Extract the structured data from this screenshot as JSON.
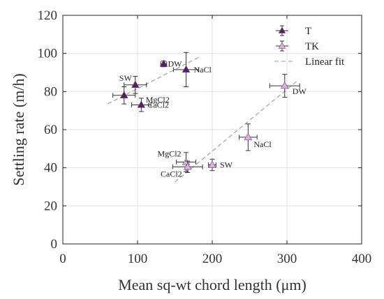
{
  "chart_data": {
    "type": "scatter",
    "title": "",
    "xlabel": "Mean sq-wt chord length (μm)",
    "ylabel": "Settling rate (m/h)",
    "xlim": [
      0,
      400
    ],
    "ylim": [
      0,
      120
    ],
    "xticks": [
      0,
      100,
      200,
      300,
      400
    ],
    "yticks": [
      0,
      20,
      40,
      60,
      80,
      100,
      120
    ],
    "grid": true,
    "legend_position": "top-right",
    "series": [
      {
        "name": "T",
        "color": "#5c1a6e",
        "marker": "triangle-up",
        "points": [
          {
            "label": "DW",
            "x": 135,
            "y": 94.5,
            "xerr": 4,
            "yerr": 1.5
          },
          {
            "label": "NaCl",
            "x": 165,
            "y": 91.5,
            "xerr": 17,
            "yerr": 9
          },
          {
            "label": "SW",
            "x": 97,
            "y": 83.5,
            "xerr": 15,
            "yerr": 4.5
          },
          {
            "label": "MgCl2",
            "x": 82,
            "y": 78,
            "xerr": 15,
            "yerr": 4.5
          },
          {
            "label": "CaCl2",
            "x": 105,
            "y": 73,
            "xerr": 13,
            "yerr": 3.5
          }
        ]
      },
      {
        "name": "TK",
        "color": "#e5a8e8",
        "marker": "triangle-up",
        "points": [
          {
            "label": "DW",
            "x": 297,
            "y": 83,
            "xerr": 20,
            "yerr": 6
          },
          {
            "label": "NaCl",
            "x": 248,
            "y": 56,
            "xerr": 12,
            "yerr": 7
          },
          {
            "label": "SW",
            "x": 200,
            "y": 41.5,
            "xerr": 5,
            "yerr": 3
          },
          {
            "label": "MgCl2",
            "x": 165,
            "y": 43,
            "xerr": 13,
            "yerr": 5
          },
          {
            "label": "CaCl2",
            "x": 167,
            "y": 40.5,
            "xerr": 20,
            "yerr": 3
          }
        ]
      }
    ],
    "fits": [
      {
        "name": "Linear fit",
        "color": "#9a9a9a",
        "dash": "6,4",
        "x": [
          60,
          182
        ],
        "y": [
          73.5,
          98
        ]
      },
      {
        "name": "",
        "color": "#9a9a9a",
        "dash": "6,4",
        "x": [
          150,
          315
        ],
        "y": [
          32.5,
          86
        ]
      }
    ]
  }
}
